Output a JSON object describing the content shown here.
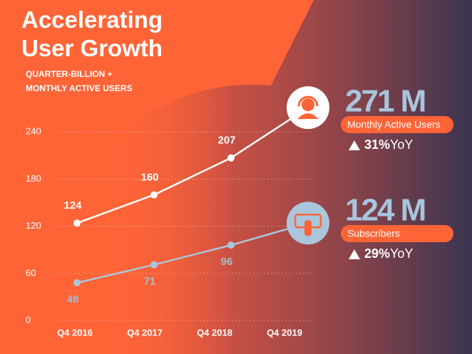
{
  "chart_data": {
    "type": "line",
    "title": "Accelerating User Growth",
    "subtitle": "QUARTER-BILLION + MONTHLY ACTIVE USERS",
    "categories": [
      "Q4 2016",
      "Q4 2017",
      "Q4 2018",
      "Q4 2019"
    ],
    "series": [
      {
        "name": "Monthly Active Users",
        "color": "#ffffff",
        "values": [
          124,
          160,
          207,
          271
        ],
        "value_labels": [
          "124",
          "160",
          "207",
          "271 M"
        ],
        "change": "31%",
        "change_suffix": "YoY"
      },
      {
        "name": "Subscribers",
        "color": "#a9c6dc",
        "values": [
          48,
          71,
          96,
          124
        ],
        "value_labels": [
          "48",
          "71",
          "96",
          "124 M"
        ],
        "change": "29%",
        "change_suffix": "YoY"
      }
    ],
    "ylim": [
      0,
      272
    ],
    "yticks": [
      0,
      60,
      120,
      180,
      240
    ],
    "grid": true
  }
}
